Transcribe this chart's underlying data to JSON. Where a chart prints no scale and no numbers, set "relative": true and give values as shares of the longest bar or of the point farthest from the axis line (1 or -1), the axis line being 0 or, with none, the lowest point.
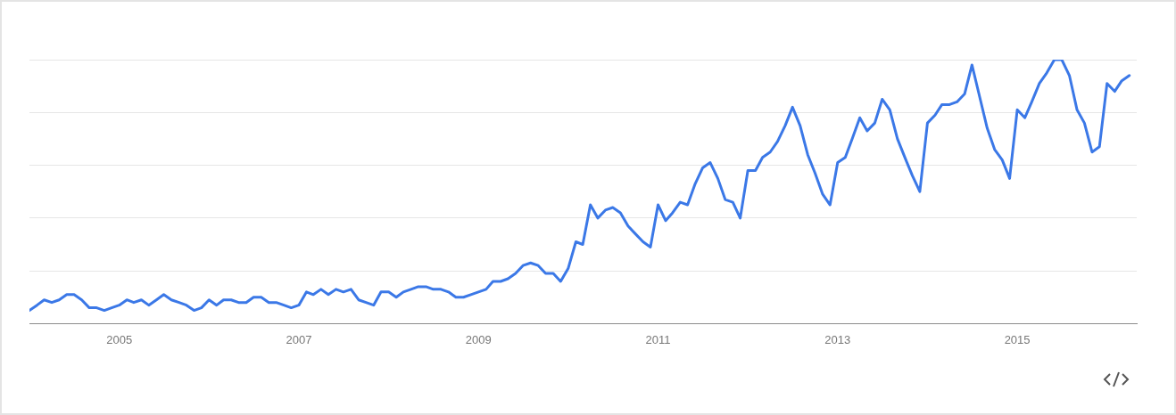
{
  "chart_data": {
    "type": "line",
    "relative": true,
    "x": [
      "2004-01",
      "2004-02",
      "2004-03",
      "2004-04",
      "2004-05",
      "2004-06",
      "2004-07",
      "2004-08",
      "2004-09",
      "2004-10",
      "2004-11",
      "2004-12",
      "2005-01",
      "2005-02",
      "2005-03",
      "2005-04",
      "2005-05",
      "2005-06",
      "2005-07",
      "2005-08",
      "2005-09",
      "2005-10",
      "2005-11",
      "2005-12",
      "2006-01",
      "2006-02",
      "2006-03",
      "2006-04",
      "2006-05",
      "2006-06",
      "2006-07",
      "2006-08",
      "2006-09",
      "2006-10",
      "2006-11",
      "2006-12",
      "2007-01",
      "2007-02",
      "2007-03",
      "2007-04",
      "2007-05",
      "2007-06",
      "2007-07",
      "2007-08",
      "2007-09",
      "2007-10",
      "2007-11",
      "2007-12",
      "2008-01",
      "2008-02",
      "2008-03",
      "2008-04",
      "2008-05",
      "2008-06",
      "2008-07",
      "2008-08",
      "2008-09",
      "2008-10",
      "2008-11",
      "2008-12",
      "2009-01",
      "2009-02",
      "2009-03",
      "2009-04",
      "2009-05",
      "2009-06",
      "2009-07",
      "2009-08",
      "2009-09",
      "2009-10",
      "2009-11",
      "2009-12",
      "2010-01",
      "2010-02",
      "2010-03",
      "2010-04",
      "2010-05",
      "2010-06",
      "2010-07",
      "2010-08",
      "2010-09",
      "2010-10",
      "2010-11",
      "2010-12",
      "2011-01",
      "2011-02",
      "2011-03",
      "2011-04",
      "2011-05",
      "2011-06",
      "2011-07",
      "2011-08",
      "2011-09",
      "2011-10",
      "2011-11",
      "2011-12",
      "2012-01",
      "2012-02",
      "2012-03",
      "2012-04",
      "2012-05",
      "2012-06",
      "2012-07",
      "2012-08",
      "2012-09",
      "2012-10",
      "2012-11",
      "2012-12",
      "2013-01",
      "2013-02",
      "2013-03",
      "2013-04",
      "2013-05",
      "2013-06",
      "2013-07",
      "2013-08",
      "2013-09",
      "2013-10",
      "2013-11",
      "2013-12",
      "2014-01",
      "2014-02",
      "2014-03",
      "2014-04",
      "2014-05",
      "2014-06",
      "2014-07",
      "2014-08",
      "2014-09",
      "2014-10",
      "2014-11",
      "2014-12",
      "2015-01",
      "2015-02",
      "2015-03",
      "2015-04",
      "2015-05",
      "2015-06",
      "2015-07",
      "2015-08",
      "2015-09",
      "2015-10",
      "2015-11",
      "2015-12",
      "2016-01",
      "2016-02",
      "2016-03",
      "2016-04"
    ],
    "xlim": [
      "2004-01",
      "2016-05"
    ],
    "xticks": [
      "2005",
      "2007",
      "2009",
      "2011",
      "2013",
      "2015"
    ],
    "series": [
      {
        "color": "#3b78e7",
        "values": [
          0.05,
          0.07,
          0.09,
          0.08,
          0.09,
          0.11,
          0.11,
          0.09,
          0.06,
          0.06,
          0.05,
          0.06,
          0.07,
          0.09,
          0.08,
          0.09,
          0.07,
          0.09,
          0.11,
          0.09,
          0.08,
          0.07,
          0.05,
          0.06,
          0.09,
          0.07,
          0.09,
          0.09,
          0.08,
          0.08,
          0.1,
          0.1,
          0.08,
          0.08,
          0.07,
          0.06,
          0.07,
          0.12,
          0.11,
          0.13,
          0.11,
          0.13,
          0.12,
          0.13,
          0.09,
          0.08,
          0.07,
          0.12,
          0.12,
          0.1,
          0.12,
          0.13,
          0.14,
          0.14,
          0.13,
          0.13,
          0.12,
          0.1,
          0.1,
          0.11,
          0.12,
          0.13,
          0.16,
          0.16,
          0.17,
          0.19,
          0.22,
          0.23,
          0.22,
          0.19,
          0.19,
          0.16,
          0.21,
          0.31,
          0.3,
          0.45,
          0.4,
          0.43,
          0.44,
          0.42,
          0.37,
          0.34,
          0.31,
          0.29,
          0.45,
          0.39,
          0.42,
          0.46,
          0.45,
          0.53,
          0.59,
          0.61,
          0.55,
          0.47,
          0.46,
          0.4,
          0.58,
          0.58,
          0.63,
          0.65,
          0.69,
          0.75,
          0.82,
          0.75,
          0.64,
          0.57,
          0.49,
          0.45,
          0.61,
          0.63,
          0.7,
          0.78,
          0.73,
          0.76,
          0.85,
          0.81,
          0.7,
          0.63,
          0.56,
          0.5,
          0.76,
          0.79,
          0.83,
          0.83,
          0.84,
          0.87,
          0.98,
          0.86,
          0.74,
          0.66,
          0.62,
          0.55,
          0.81,
          0.78,
          0.84,
          0.91,
          0.95,
          1,
          1,
          0.94,
          0.81,
          0.76,
          0.65,
          0.67,
          0.91,
          0.88,
          0.92,
          0.94
        ]
      }
    ],
    "grid": "y",
    "marker": "none",
    "line_style": "solid"
  }
}
